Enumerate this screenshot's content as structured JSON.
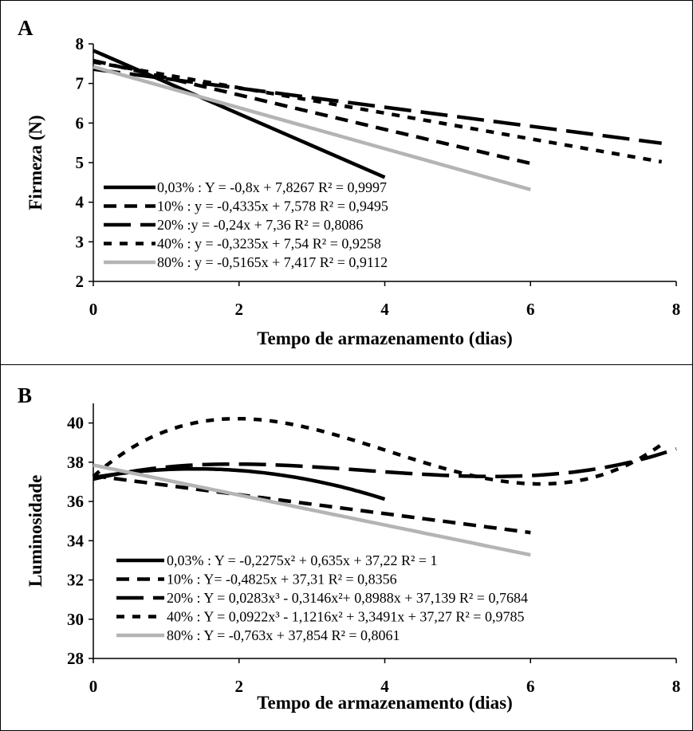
{
  "chart_data": [
    {
      "type": "line",
      "panel_label": "A",
      "xlabel": "Tempo de armazenamento (dias)",
      "ylabel": "Firmeza (N)",
      "xlim": [
        0,
        8
      ],
      "ylim": [
        2,
        8
      ],
      "xticks": [
        "0",
        "2",
        "4",
        "6",
        "8"
      ],
      "yticks": [
        "2",
        "3",
        "4",
        "5",
        "6",
        "7",
        "8"
      ],
      "grid": false,
      "legend_placement": "bottom-left",
      "series": [
        {
          "legend": "0,03% : Y = -0,8x + 7,8267 R² = 0,9997",
          "style": "solid-black",
          "x": [
            0,
            4
          ],
          "y": [
            7.83,
            4.63
          ]
        },
        {
          "legend": "10% : y = -0,4335x + 7,578  R² = 0,9495",
          "style": "dash-black",
          "x": [
            0,
            2,
            4,
            6
          ],
          "y": [
            7.58,
            6.71,
            5.84,
            4.98
          ]
        },
        {
          "legend": "20% :y = -0,24x + 7,36 R² = 0,8086",
          "style": "longdash-black",
          "x": [
            0,
            2,
            4,
            6,
            7.8
          ],
          "y": [
            7.36,
            6.88,
            6.4,
            5.92,
            5.49
          ]
        },
        {
          "legend": "40% : y = -0,3235x + 7,54 R² = 0,9258",
          "style": "shortdash-black",
          "x": [
            0,
            2,
            4,
            6,
            7.8
          ],
          "y": [
            7.54,
            6.89,
            6.25,
            5.6,
            5.02
          ]
        },
        {
          "legend": "80% : y = -0,5165x + 7,417 R² = 0,9112",
          "style": "solid-gray",
          "x": [
            0,
            6
          ],
          "y": [
            7.42,
            4.32
          ]
        }
      ]
    },
    {
      "type": "line",
      "panel_label": "B",
      "xlabel": "Tempo de armazenamento (dias)",
      "ylabel": "Luminosidade",
      "xlim": [
        0,
        8
      ],
      "ylim": [
        28,
        41
      ],
      "xticks": [
        "0",
        "2",
        "4",
        "6",
        "8"
      ],
      "yticks": [
        "28",
        "30",
        "32",
        "34",
        "36",
        "38",
        "40"
      ],
      "grid": false,
      "legend_placement": "bottom-left",
      "series": [
        {
          "legend": "0,03% :  Y = -0,2275x² + 0,635x + 37,22 R² = 1",
          "style": "solid-black",
          "fit": {
            "kind": "poly",
            "coef": [
              37.22,
              0.635,
              -0.2275
            ]
          },
          "x_range": [
            0,
            4
          ]
        },
        {
          "legend": "10% : Y= -0,4825x + 37,31 R² = 0,8356",
          "style": "dash-black",
          "fit": {
            "kind": "poly",
            "coef": [
              37.31,
              -0.4825
            ]
          },
          "x_range": [
            0,
            6
          ]
        },
        {
          "legend": "20% :  Y = 0,0283x³ - 0,3146x²+ 0,8988x + 37,139 R² = 0,7684",
          "style": "longdash-black",
          "fit": {
            "kind": "poly",
            "coef": [
              37.139,
              0.8988,
              -0.3146,
              0.0283
            ]
          },
          "x_range": [
            0,
            8
          ]
        },
        {
          "legend": "40% : Y = 0,0922x³ - 1,1216x² + 3,3491x + 37,27 R² = 0,9785",
          "style": "shortdash-black",
          "fit": {
            "kind": "poly",
            "coef": [
              37.27,
              3.3491,
              -1.1216,
              0.0922
            ]
          },
          "x_range": [
            0,
            7.85
          ]
        },
        {
          "legend": "80% : Y = -0,763x + 37,854 R² = 0,8061",
          "style": "solid-gray",
          "fit": {
            "kind": "poly",
            "coef": [
              37.854,
              -0.763
            ]
          },
          "x_range": [
            0,
            6
          ]
        }
      ]
    }
  ]
}
